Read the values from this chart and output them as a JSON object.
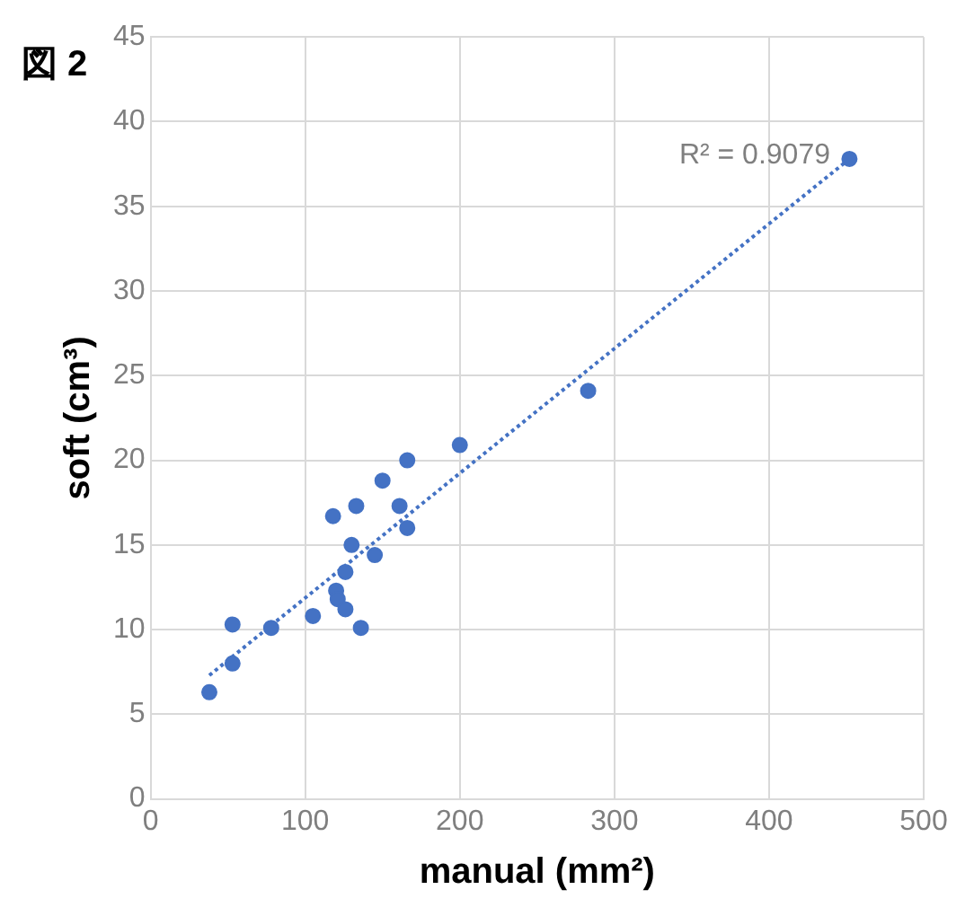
{
  "chart_data": {
    "type": "scatter",
    "title": "図 2",
    "xlabel": "manual (mm²)",
    "ylabel": "soft (cm³)",
    "series": [
      {
        "type": "scatter",
        "color": "#4472c4",
        "x": [
          38,
          53,
          53,
          78,
          105,
          120,
          121,
          126,
          136,
          126,
          130,
          118,
          133,
          145,
          150,
          161,
          166,
          166,
          200,
          283,
          452
        ],
        "values": [
          6.3,
          8.0,
          10.3,
          10.1,
          10.8,
          12.3,
          11.8,
          11.2,
          10.1,
          13.4,
          15.0,
          16.7,
          17.3,
          14.4,
          18.8,
          17.3,
          16.0,
          20.0,
          20.9,
          24.1,
          37.8
        ],
        "marker": "circle"
      },
      {
        "type": "line",
        "color": "#4472c4",
        "x": [
          38,
          452
        ],
        "values": [
          7.3,
          37.8
        ],
        "marker": "none",
        "line_style": "dotted"
      }
    ],
    "annotations": [
      "R² = 0.9079"
    ],
    "xlim": [
      0,
      500
    ],
    "xticks": [
      0,
      100,
      200,
      300,
      400,
      500
    ],
    "ylim": [
      0,
      45
    ],
    "yticks": [
      0,
      5,
      10,
      15,
      20,
      25,
      30,
      35,
      40,
      45
    ],
    "grid": true,
    "legend": false
  }
}
